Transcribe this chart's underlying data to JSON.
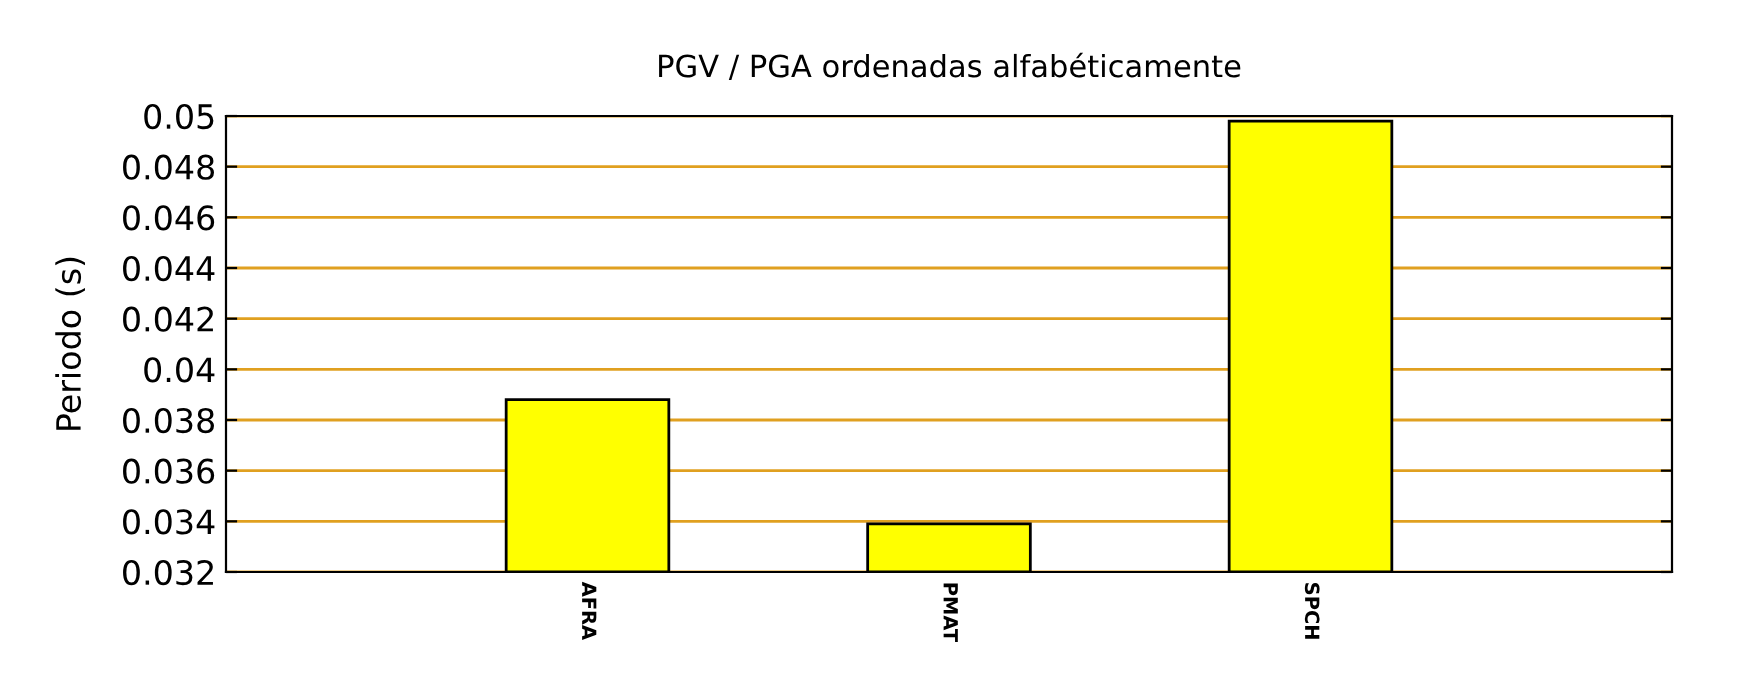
{
  "chart_data": {
    "type": "bar",
    "title": "PGV / PGA ordenadas alfabéticamente",
    "ylabel": "Periodo (s)",
    "categories": [
      "AFRA",
      "PMAT",
      "SPCH"
    ],
    "values": [
      0.0388,
      0.0339,
      0.0498
    ],
    "color": "#ffff00",
    "ylim": [
      0.032,
      0.05
    ],
    "yticks": [
      0.032,
      0.034,
      0.036,
      0.038,
      0.04,
      0.042,
      0.044,
      0.046,
      0.048,
      0.05
    ],
    "grid": "y",
    "legend": false
  }
}
